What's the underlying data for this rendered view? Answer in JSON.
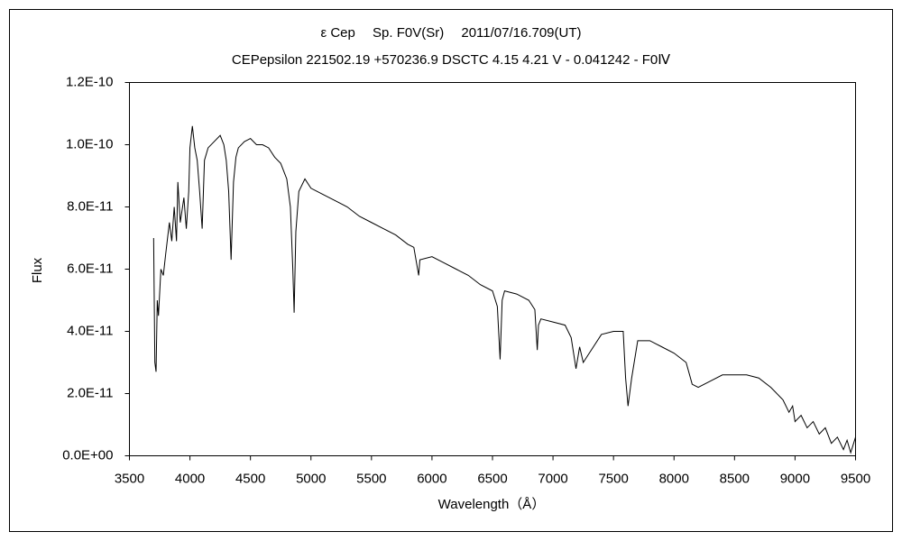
{
  "chart_data": {
    "type": "line",
    "title": "ε Cep　 Sp. F0V(Sr)　 2011/07/16.709(UT)",
    "subtitle": "CEPepsilon 221502.19 +570236.9 DSCTC 4.15 4.21 V - 0.041242 - F0Ⅳ",
    "x_label": "Wavelength（Å）",
    "y_label": "Flux",
    "color": "#000000",
    "xlim": [
      3500,
      9500
    ],
    "xticks": [
      3500,
      4000,
      4500,
      5000,
      5500,
      6000,
      6500,
      7000,
      7500,
      8000,
      8500,
      9000,
      9500
    ],
    "ylim": [
      0,
      1.2e-10
    ],
    "yticks": [
      {
        "value": 0,
        "label": "0.0E+00"
      },
      {
        "value": 2e-11,
        "label": "2.0E-11"
      },
      {
        "value": 4e-11,
        "label": "4.0E-11"
      },
      {
        "value": 6e-11,
        "label": "6.0E-11"
      },
      {
        "value": 8e-11,
        "label": "8.0E-11"
      },
      {
        "value": 1e-10,
        "label": "1.0E-10"
      },
      {
        "value": 1.2e-10,
        "label": "1.2E-10"
      }
    ],
    "x": [
      3700,
      3710,
      3720,
      3730,
      3740,
      3760,
      3780,
      3800,
      3830,
      3850,
      3870,
      3889,
      3900,
      3920,
      3950,
      3970,
      3990,
      4000,
      4020,
      4040,
      4060,
      4080,
      4101,
      4120,
      4150,
      4200,
      4250,
      4280,
      4300,
      4320,
      4340,
      4360,
      4380,
      4400,
      4450,
      4500,
      4550,
      4600,
      4650,
      4700,
      4750,
      4800,
      4830,
      4850,
      4861,
      4875,
      4900,
      4950,
      5000,
      5100,
      5200,
      5300,
      5400,
      5500,
      5600,
      5700,
      5800,
      5850,
      5890,
      5900,
      6000,
      6100,
      6200,
      6300,
      6400,
      6500,
      6540,
      6563,
      6580,
      6600,
      6700,
      6800,
      6850,
      6870,
      6880,
      6900,
      7000,
      7100,
      7150,
      7190,
      7220,
      7250,
      7300,
      7400,
      7500,
      7580,
      7600,
      7620,
      7650,
      7700,
      7800,
      7900,
      8000,
      8100,
      8150,
      8200,
      8300,
      8400,
      8500,
      8600,
      8700,
      8800,
      8900,
      8950,
      8980,
      9000,
      9050,
      9100,
      9150,
      9200,
      9250,
      9300,
      9350,
      9400,
      9430,
      9460,
      9500
    ],
    "values": [
      7e-11,
      3e-11,
      2.7e-11,
      5e-11,
      4.5e-11,
      6e-11,
      5.8e-11,
      6.5e-11,
      7.5e-11,
      6.9e-11,
      8e-11,
      6.9e-11,
      8.8e-11,
      7.5e-11,
      8.3e-11,
      7.3e-11,
      8.5e-11,
      9.9e-11,
      1.06e-10,
      9.9e-11,
      9.5e-11,
      8.5e-11,
      7.3e-11,
      9.5e-11,
      9.9e-11,
      1.01e-10,
      1.03e-10,
      1e-10,
      9.5e-11,
      8.5e-11,
      6.3e-11,
      8.8e-11,
      9.6e-11,
      9.9e-11,
      1.01e-10,
      1.02e-10,
      1e-10,
      1e-10,
      9.9e-11,
      9.6e-11,
      9.4e-11,
      8.9e-11,
      8e-11,
      6e-11,
      4.6e-11,
      7.2e-11,
      8.5e-11,
      8.9e-11,
      8.6e-11,
      8.4e-11,
      8.2e-11,
      8e-11,
      7.7e-11,
      7.5e-11,
      7.3e-11,
      7.1e-11,
      6.8e-11,
      6.7e-11,
      5.8e-11,
      6.3e-11,
      6.4e-11,
      6.2e-11,
      6e-11,
      5.8e-11,
      5.5e-11,
      5.3e-11,
      4.8e-11,
      3.1e-11,
      5e-11,
      5.3e-11,
      5.2e-11,
      5e-11,
      4.7e-11,
      3.4e-11,
      4.2e-11,
      4.4e-11,
      4.3e-11,
      4.2e-11,
      3.8e-11,
      2.8e-11,
      3.5e-11,
      3e-11,
      3.3e-11,
      3.9e-11,
      4e-11,
      4e-11,
      2.5e-11,
      1.6e-11,
      2.5e-11,
      3.7e-11,
      3.7e-11,
      3.5e-11,
      3.3e-11,
      3e-11,
      2.3e-11,
      2.2e-11,
      2.4e-11,
      2.6e-11,
      2.6e-11,
      2.6e-11,
      2.5e-11,
      2.2e-11,
      1.8e-11,
      1.4e-11,
      1.6e-11,
      1.1e-11,
      1.3e-11,
      9e-12,
      1.1e-11,
      7e-12,
      9e-12,
      4e-12,
      6e-12,
      2e-12,
      5e-12,
      1e-12,
      6e-12
    ]
  }
}
